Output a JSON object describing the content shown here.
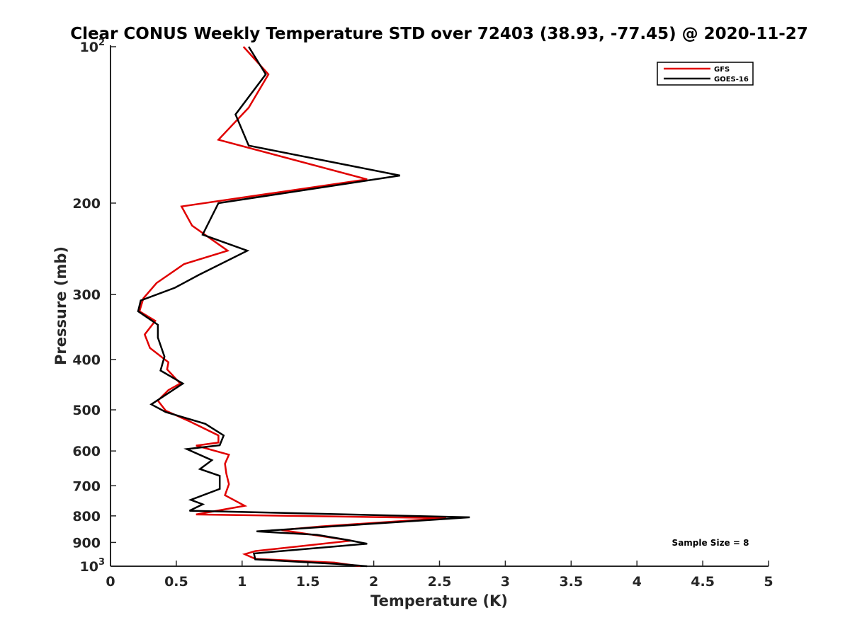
{
  "chart_data": {
    "type": "line",
    "title": "Clear CONUS Weekly Temperature STD over 72403 (38.93, -77.45) @ 2020-11-27",
    "xlabel": "Temperature (K)",
    "ylabel": "Pressure (mb)",
    "xlim": [
      0,
      5
    ],
    "ylim": [
      100,
      1000
    ],
    "yscale": "log",
    "y_reversed": true,
    "grid": false,
    "legend_position": "top-right",
    "x_ticks": [
      {
        "value": 0,
        "label": "0"
      },
      {
        "value": 0.5,
        "label": "0.5"
      },
      {
        "value": 1,
        "label": "1"
      },
      {
        "value": 1.5,
        "label": "1.5"
      },
      {
        "value": 2,
        "label": "2"
      },
      {
        "value": 2.5,
        "label": "2.5"
      },
      {
        "value": 3,
        "label": "3"
      },
      {
        "value": 3.5,
        "label": "3.5"
      },
      {
        "value": 4,
        "label": "4"
      },
      {
        "value": 4.5,
        "label": "4.5"
      },
      {
        "value": 5,
        "label": "5"
      }
    ],
    "y_ticks": [
      {
        "value": 100,
        "base": "10",
        "exp": "2"
      },
      {
        "value": 200,
        "label": "200"
      },
      {
        "value": 300,
        "label": "300"
      },
      {
        "value": 400,
        "label": "400"
      },
      {
        "value": 500,
        "label": "500"
      },
      {
        "value": 600,
        "label": "600"
      },
      {
        "value": 700,
        "label": "700"
      },
      {
        "value": 800,
        "label": "800"
      },
      {
        "value": 900,
        "label": "900"
      },
      {
        "value": 1000,
        "base": "10",
        "exp": "3"
      }
    ],
    "annotation": "Sample Size = 8",
    "series": [
      {
        "name": "GFS",
        "color": "#e00000",
        "points": [
          [
            1.01,
            100
          ],
          [
            1.2,
            113
          ],
          [
            1.05,
            131
          ],
          [
            0.82,
            151
          ],
          [
            1.95,
            180
          ],
          [
            0.54,
            203
          ],
          [
            0.62,
            221
          ],
          [
            0.89,
            247
          ],
          [
            0.56,
            262
          ],
          [
            0.35,
            285
          ],
          [
            0.25,
            305
          ],
          [
            0.22,
            323
          ],
          [
            0.34,
            337
          ],
          [
            0.26,
            358
          ],
          [
            0.3,
            380
          ],
          [
            0.44,
            405
          ],
          [
            0.43,
            418
          ],
          [
            0.53,
            445
          ],
          [
            0.44,
            458
          ],
          [
            0.36,
            480
          ],
          [
            0.42,
            502
          ],
          [
            0.6,
            526
          ],
          [
            0.82,
            560
          ],
          [
            0.82,
            578
          ],
          [
            0.65,
            586
          ],
          [
            0.9,
            610
          ],
          [
            0.87,
            635
          ],
          [
            0.88,
            663
          ],
          [
            0.9,
            695
          ],
          [
            0.87,
            730
          ],
          [
            1.02,
            765
          ],
          [
            0.65,
            795
          ],
          [
            2.55,
            808
          ],
          [
            1.6,
            838
          ],
          [
            1.3,
            852
          ],
          [
            1.83,
            893
          ],
          [
            1.1,
            935
          ],
          [
            1.02,
            948
          ],
          [
            1.1,
            968
          ],
          [
            1.7,
            984
          ],
          [
            1.9,
            1000
          ]
        ]
      },
      {
        "name": "GOES-16",
        "color": "#000000",
        "points": [
          [
            1.05,
            100
          ],
          [
            1.18,
            113
          ],
          [
            0.95,
            135
          ],
          [
            1.05,
            155
          ],
          [
            2.2,
            177
          ],
          [
            0.82,
            200
          ],
          [
            0.7,
            230
          ],
          [
            1.04,
            247
          ],
          [
            0.67,
            275
          ],
          [
            0.49,
            291
          ],
          [
            0.23,
            308
          ],
          [
            0.21,
            323
          ],
          [
            0.36,
            343
          ],
          [
            0.36,
            363
          ],
          [
            0.41,
            395
          ],
          [
            0.38,
            420
          ],
          [
            0.55,
            445
          ],
          [
            0.31,
            488
          ],
          [
            0.42,
            505
          ],
          [
            0.72,
            532
          ],
          [
            0.86,
            560
          ],
          [
            0.83,
            585
          ],
          [
            0.58,
            595
          ],
          [
            0.77,
            625
          ],
          [
            0.68,
            650
          ],
          [
            0.83,
            670
          ],
          [
            0.83,
            710
          ],
          [
            0.61,
            745
          ],
          [
            0.7,
            760
          ],
          [
            0.6,
            782
          ],
          [
            2.73,
            805
          ],
          [
            1.11,
            857
          ],
          [
            1.57,
            870
          ],
          [
            1.8,
            890
          ],
          [
            1.95,
            905
          ],
          [
            1.09,
            945
          ],
          [
            1.1,
            970
          ],
          [
            1.72,
            990
          ],
          [
            1.95,
            1000
          ]
        ]
      }
    ]
  }
}
